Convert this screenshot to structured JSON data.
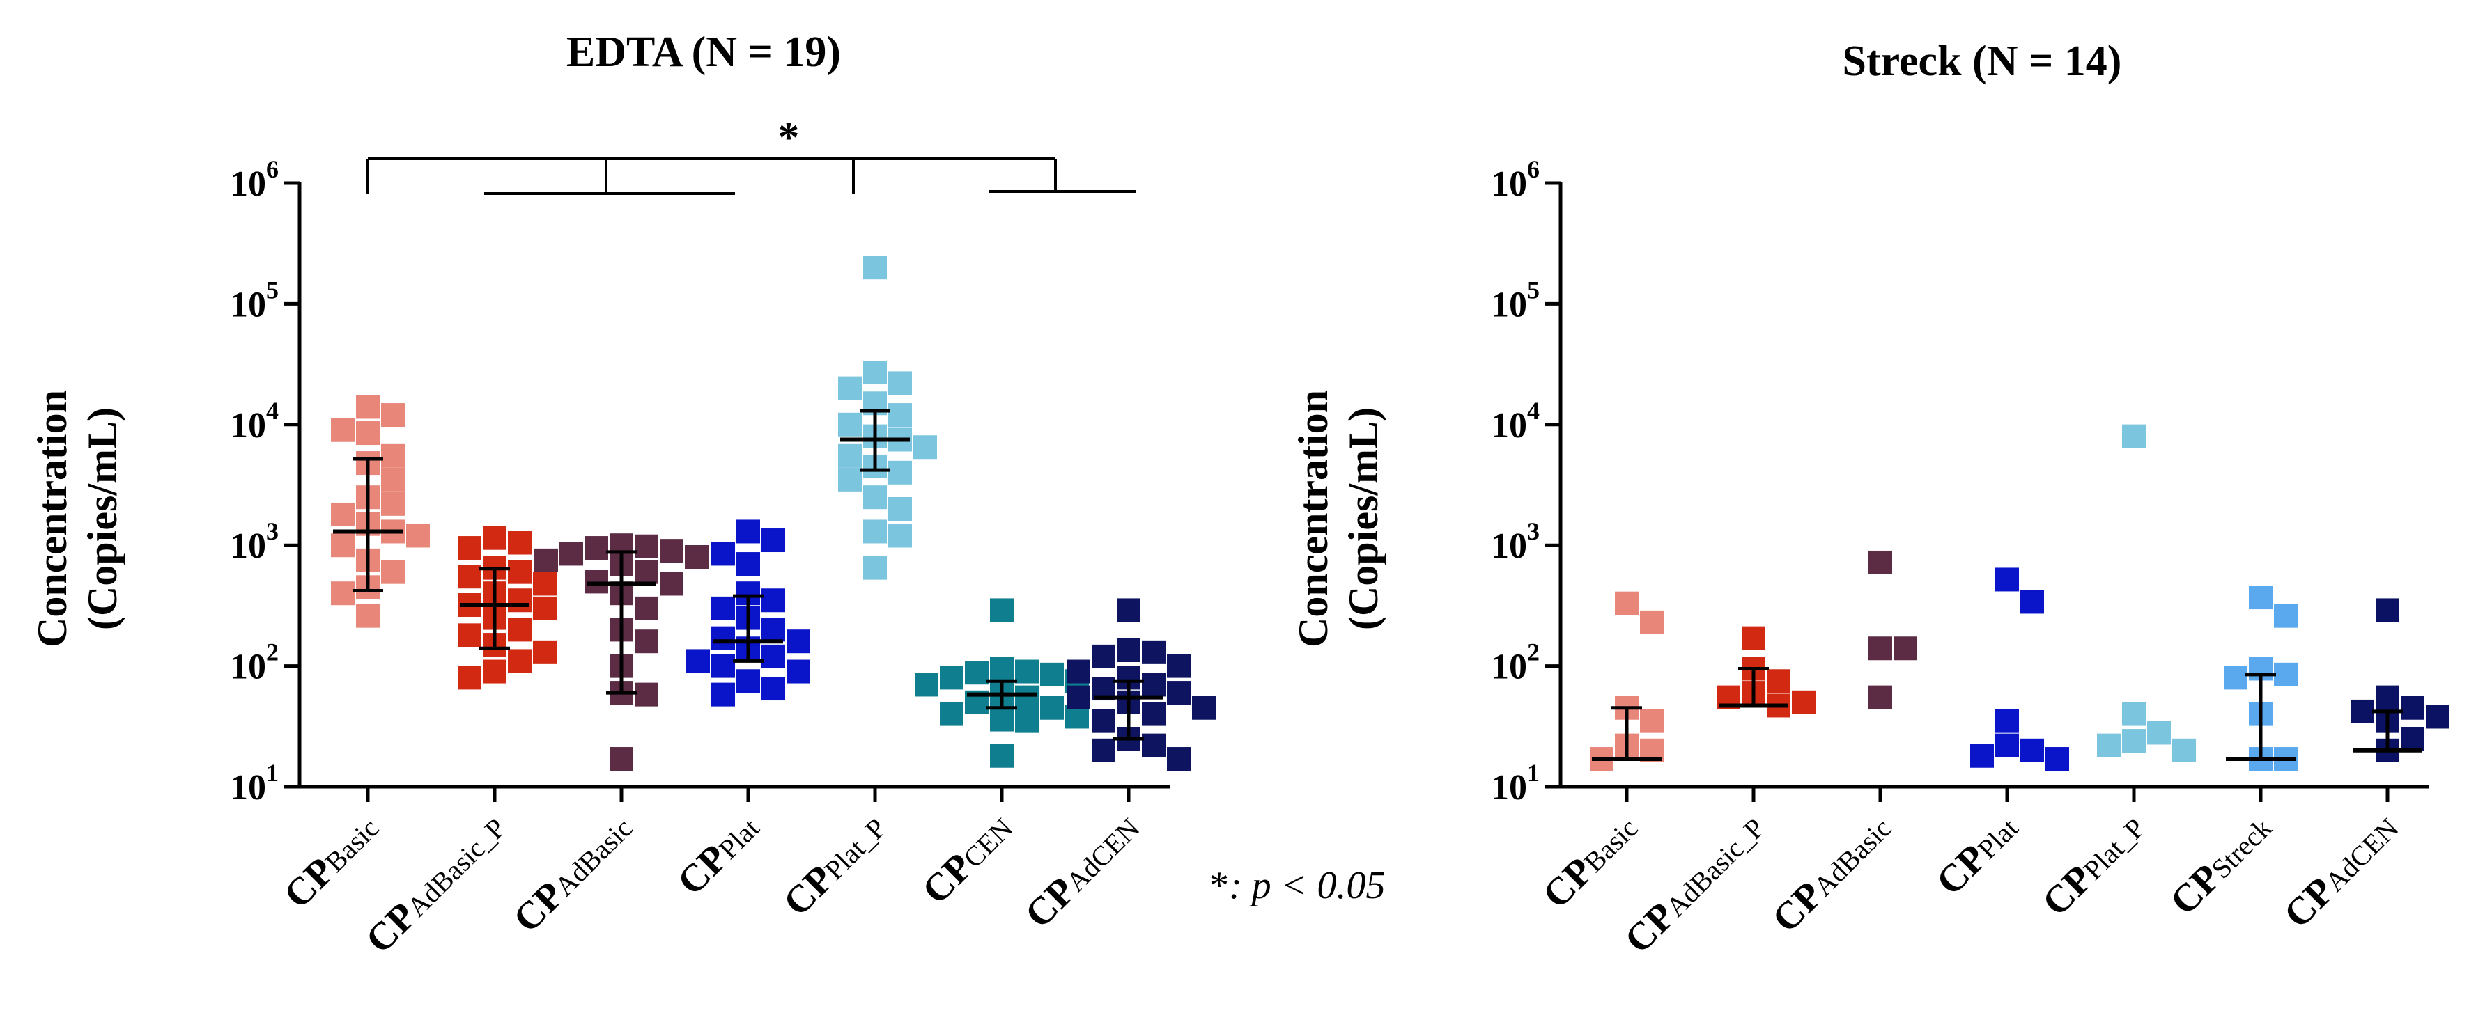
{
  "footnote": {
    "star": "*",
    "text": ": p < 0.05"
  },
  "chart_data": [
    {
      "type": "scatter",
      "title": "EDTA (N = 19)",
      "ylabel_line1": "Concentration",
      "ylabel_line2": "(Copies/mL)",
      "yscale": "log",
      "ylim": [
        10,
        1000000
      ],
      "yticks": [
        {
          "exp": 1,
          "base": "10",
          "sup": "1"
        },
        {
          "exp": 2,
          "base": "10",
          "sup": "2"
        },
        {
          "exp": 3,
          "base": "10",
          "sup": "3"
        },
        {
          "exp": 4,
          "base": "10",
          "sup": "4"
        },
        {
          "exp": 5,
          "base": "10",
          "sup": "5"
        },
        {
          "exp": 6,
          "base": "10",
          "sup": "6"
        }
      ],
      "significance": "*",
      "categories": [
        {
          "prefix": "CP",
          "sub": "Basic",
          "color": "#E8867A",
          "median": 1300,
          "q1": 420,
          "q3": 5200,
          "values": [
            14000,
            12000,
            9000,
            8500,
            5500,
            4800,
            3500,
            2500,
            2200,
            1800,
            1500,
            1300,
            1200,
            1000,
            750,
            600,
            450,
            400,
            260
          ]
        },
        {
          "prefix": "CP",
          "sub": "AdBasic_P",
          "color": "#D22A12",
          "median": 320,
          "q1": 140,
          "q3": 640,
          "values": [
            1150,
            1050,
            950,
            650,
            600,
            550,
            480,
            400,
            350,
            320,
            300,
            250,
            200,
            180,
            150,
            130,
            110,
            90,
            80
          ]
        },
        {
          "prefix": "CP",
          "sub": "AdBasic",
          "color": "#5C2B44",
          "median": 480,
          "q1": 60,
          "q3": 880,
          "values": [
            1000,
            980,
            950,
            900,
            850,
            800,
            750,
            700,
            600,
            500,
            480,
            400,
            300,
            200,
            160,
            100,
            60,
            58,
            17
          ]
        },
        {
          "prefix": "CP",
          "sub": "Plat",
          "color": "#0A14C8",
          "median": 160,
          "q1": 110,
          "q3": 380,
          "values": [
            1300,
            1100,
            850,
            700,
            400,
            350,
            300,
            250,
            200,
            170,
            160,
            140,
            120,
            110,
            100,
            90,
            75,
            65,
            58
          ]
        },
        {
          "prefix": "CP",
          "sub": "Plat_P",
          "color": "#7CC5DE",
          "median": 7500,
          "q1": 4200,
          "q3": 13000,
          "values": [
            200000,
            27000,
            22000,
            20000,
            15000,
            12000,
            10000,
            8000,
            7500,
            6500,
            5500,
            4500,
            4000,
            3500,
            2500,
            2000,
            1300,
            1200,
            650
          ]
        },
        {
          "prefix": "CP",
          "sub": "CEN",
          "color": "#0F7F8F",
          "median": 58,
          "q1": 45,
          "q3": 75,
          "values": [
            290,
            95,
            90,
            88,
            85,
            80,
            75,
            70,
            65,
            60,
            58,
            55,
            50,
            45,
            40,
            38,
            36,
            35,
            18
          ]
        },
        {
          "prefix": "CP",
          "sub": "AdCEN",
          "color": "#0E1460",
          "median": 55,
          "q1": 25,
          "q3": 75,
          "values": [
            290,
            135,
            130,
            120,
            100,
            90,
            80,
            70,
            65,
            60,
            55,
            50,
            45,
            40,
            35,
            25,
            22,
            20,
            17
          ]
        }
      ]
    },
    {
      "type": "scatter",
      "title": "Streck (N = 14)",
      "ylabel_line1": "Concentration",
      "ylabel_line2": "(Copies/mL)",
      "yscale": "log",
      "ylim": [
        10,
        1000000
      ],
      "yticks": [
        {
          "exp": 1,
          "base": "10",
          "sup": "1"
        },
        {
          "exp": 2,
          "base": "10",
          "sup": "2"
        },
        {
          "exp": 3,
          "base": "10",
          "sup": "3"
        },
        {
          "exp": 4,
          "base": "10",
          "sup": "4"
        },
        {
          "exp": 5,
          "base": "10",
          "sup": "5"
        },
        {
          "exp": 6,
          "base": "10",
          "sup": "6"
        }
      ],
      "categories": [
        {
          "prefix": "CP",
          "sub": "Basic",
          "color": "#E8867A",
          "median": 17,
          "q1": 17,
          "q3": 45,
          "values": [
            330,
            230,
            45,
            35,
            22,
            20,
            17
          ]
        },
        {
          "prefix": "CP",
          "sub": "AdBasic_P",
          "color": "#D22A12",
          "median": 47,
          "q1": 47,
          "q3": 95,
          "values": [
            170,
            95,
            75,
            60,
            55,
            50,
            47
          ]
        },
        {
          "prefix": "CP",
          "sub": "AdBasic",
          "color": "#5C2B44",
          "median": null,
          "q1": null,
          "q3": null,
          "values": [
            720,
            140,
            140,
            55
          ]
        },
        {
          "prefix": "CP",
          "sub": "Plat",
          "color": "#0A14C8",
          "median": null,
          "q1": null,
          "q3": null,
          "values": [
            520,
            340,
            35,
            22,
            20,
            18,
            17
          ]
        },
        {
          "prefix": "CP",
          "sub": "Plat_P",
          "color": "#7CC5DE",
          "median": null,
          "q1": null,
          "q3": null,
          "values": [
            8000,
            40,
            28,
            24,
            22,
            20
          ]
        },
        {
          "prefix": "CP",
          "sub": "Streck",
          "color": "#5AA8EE",
          "median": 17,
          "q1": 17,
          "q3": 85,
          "values": [
            370,
            260,
            95,
            85,
            80,
            40,
            17,
            17
          ]
        },
        {
          "prefix": "CP",
          "sub": "AdCEN",
          "color": "#0B1263",
          "median": 20,
          "q1": 20,
          "q3": 42,
          "values": [
            290,
            55,
            45,
            42,
            38,
            35,
            25,
            20
          ]
        }
      ]
    }
  ]
}
